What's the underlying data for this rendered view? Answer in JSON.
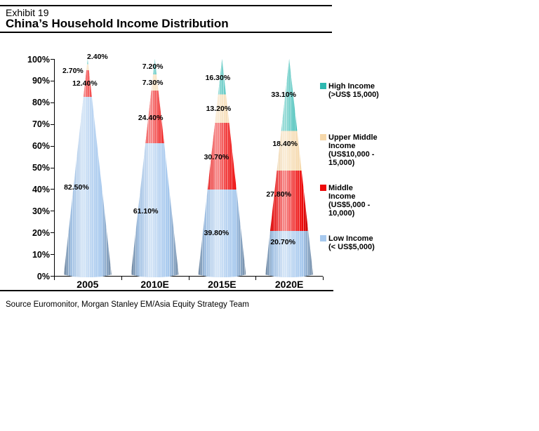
{
  "header": {
    "exhibit": "Exhibit 19",
    "title": "China’s Household Income Distribution"
  },
  "chart_data": {
    "type": "bar",
    "subtype": "100-percent-stacked-cone",
    "title": "China’s Household Income Distribution",
    "categories": [
      "2005",
      "2010E",
      "2015E",
      "2020E"
    ],
    "series": [
      {
        "key": "low-income",
        "name": "Low Income (< US$5,000)",
        "color": "#a7c9ee",
        "values": [
          82.5,
          61.1,
          39.8,
          20.7
        ],
        "data_labels": [
          "82.50%",
          "61.10%",
          "39.80%",
          "20.70%"
        ]
      },
      {
        "key": "middle-income",
        "name": "Middle Income (US$5,000 - 10,000)",
        "color": "#ee0a0a",
        "values": [
          12.4,
          24.4,
          30.7,
          27.8
        ],
        "data_labels": [
          "12.40%",
          "24.40%",
          "30.70%",
          "27.80%"
        ]
      },
      {
        "key": "upper-middle-income",
        "name": "Upper Middle Income (US$10,000 - 15,000)",
        "color": "#f5d7a9",
        "values": [
          2.7,
          7.3,
          13.2,
          18.4
        ],
        "data_labels": [
          "2.70%",
          "7.30%",
          "13.20%",
          "18.40%"
        ]
      },
      {
        "key": "high-income",
        "name": "High Income (>US$ 15,000)",
        "color": "#2db8b0",
        "values": [
          2.4,
          7.2,
          16.3,
          33.1
        ],
        "data_labels": [
          "2.40%",
          "7.20%",
          "16.30%",
          "33.10%"
        ]
      }
    ],
    "ylim": [
      0,
      100
    ],
    "yticks": [
      "0%",
      "10%",
      "20%",
      "30%",
      "40%",
      "50%",
      "60%",
      "70%",
      "80%",
      "90%",
      "100%"
    ],
    "grid": false,
    "legend_position": "right"
  },
  "legend": {
    "items": [
      {
        "key": "high-income",
        "color": "#2db8b0",
        "text": "High Income\n(>US$ 15,000)"
      },
      {
        "key": "upper-middle-income",
        "color": "#f5d7a9",
        "text": "Upper Middle\nIncome\n(US$10,000 -\n15,000)"
      },
      {
        "key": "middle-income",
        "color": "#ee0a0a",
        "text": "Middle\nIncome\n(US$5,000 -\n10,000)"
      },
      {
        "key": "low-income",
        "color": "#a7c9ee",
        "text": "Low Income\n(< US$5,000)"
      }
    ]
  },
  "footer": {
    "source": "Source Euromonitor, Morgan Stanley EM/Asia Equity Strategy Team"
  }
}
